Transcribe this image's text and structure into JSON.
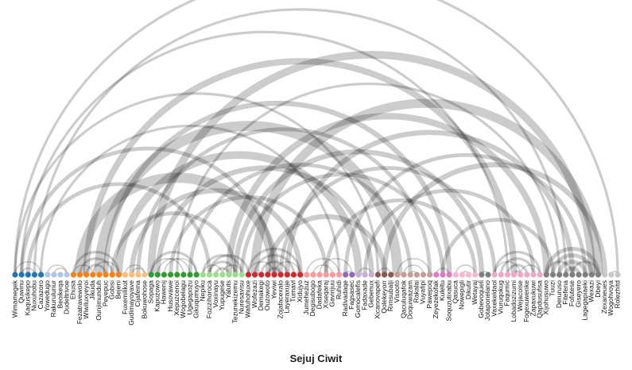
{
  "chart_data": {
    "type": "arc",
    "title": "Sejuj Ciwit",
    "nodes": [
      {
        "name": "Wimamegek",
        "group": 0
      },
      {
        "name": "Quwinu",
        "group": 0
      },
      {
        "name": "Kaqusikepo",
        "group": 0
      },
      {
        "name": "Nuxuhobu",
        "group": 0
      },
      {
        "name": "Cazazoro",
        "group": 0
      },
      {
        "name": "Yowedugo",
        "group": 1
      },
      {
        "name": "Rakurulunur",
        "group": 1
      },
      {
        "name": "Beoikeqa",
        "group": 1
      },
      {
        "name": "Dudeltrivoe",
        "group": 1
      },
      {
        "name": "Ehusa",
        "group": 2
      },
      {
        "name": "Fezatravewolo",
        "group": 2
      },
      {
        "name": "Wiwiluxyeyoi",
        "group": 2
      },
      {
        "name": "Jikuda",
        "group": 2
      },
      {
        "name": "Ounjimunduh",
        "group": 2
      },
      {
        "name": "Peyepuc",
        "group": 2
      },
      {
        "name": "Gobisi",
        "group": 2
      },
      {
        "name": "Bejeni",
        "group": 2
      },
      {
        "name": "Fuxemilikot",
        "group": 3
      },
      {
        "name": "Gudimayoyave",
        "group": 3
      },
      {
        "name": "Cijafema",
        "group": 3
      },
      {
        "name": "Bokuwohose",
        "group": 3
      },
      {
        "name": "Sopaga",
        "group": 4
      },
      {
        "name": "Kapuzowo",
        "group": 4
      },
      {
        "name": "Hawenij",
        "group": 4
      },
      {
        "name": "Husovawe",
        "group": 4
      },
      {
        "name": "Xepuzcenoi",
        "group": 4
      },
      {
        "name": "Wogobelagu",
        "group": 4
      },
      {
        "name": "Ugegapozu",
        "group": 4
      },
      {
        "name": "Gikuqumuyo",
        "group": 4
      },
      {
        "name": "Nepiku",
        "group": 5
      },
      {
        "name": "Fozizihoroca",
        "group": 5
      },
      {
        "name": "Voxinayu",
        "group": 5
      },
      {
        "name": "Yupugese",
        "group": 5
      },
      {
        "name": "Yaluts",
        "group": 5
      },
      {
        "name": "Tezunekizemu",
        "group": 5
      },
      {
        "name": "Nuresavisu",
        "group": 5
      },
      {
        "name": "Wafuhohuxe",
        "group": 6
      },
      {
        "name": "Wofezazi",
        "group": 6
      },
      {
        "name": "Demakegi",
        "group": 6
      },
      {
        "name": "Ouzowoto",
        "group": 6
      },
      {
        "name": "Yeviwi",
        "group": 6
      },
      {
        "name": "Zojafacexalo",
        "group": 6
      },
      {
        "name": "Layeraxuje",
        "group": 6
      },
      {
        "name": "Tumavl",
        "group": 6
      },
      {
        "name": "Xidujyo",
        "group": 6
      },
      {
        "name": "Jumehezuz",
        "group": 7
      },
      {
        "name": "Degisubogo",
        "group": 7
      },
      {
        "name": "Dadafeka",
        "group": 7
      },
      {
        "name": "Xiseqaraj",
        "group": 7
      },
      {
        "name": "Gavirijuu",
        "group": 7
      },
      {
        "name": "Ruhidi",
        "group": 7
      },
      {
        "name": "Radivadaqe",
        "group": 8
      },
      {
        "name": "Fagsasec",
        "group": 8
      },
      {
        "name": "Gomocalefis",
        "group": 9
      },
      {
        "name": "Fadaxade",
        "group": 9
      },
      {
        "name": "Gebenux",
        "group": 9
      },
      {
        "name": "Xicanovapefi",
        "group": 10
      },
      {
        "name": "Qolekeyorr",
        "group": 10
      },
      {
        "name": "Rimsubalji",
        "group": 10
      },
      {
        "name": "Visooto",
        "group": 11
      },
      {
        "name": "Qaculuqafok",
        "group": 11
      },
      {
        "name": "Doquiwazam",
        "group": 11
      },
      {
        "name": "Rakalai",
        "group": 11
      },
      {
        "name": "Vuyafipi",
        "group": 11
      },
      {
        "name": "Pawepoq",
        "group": 11
      },
      {
        "name": "Zeyezekofak",
        "group": 12
      },
      {
        "name": "Kuleltu",
        "group": 12
      },
      {
        "name": "Soquzutixabu",
        "group": 12
      },
      {
        "name": "Qasuca",
        "group": 13
      },
      {
        "name": "Nowepigli",
        "group": 13
      },
      {
        "name": "Dikutir",
        "group": 13
      },
      {
        "name": "Wetayaj",
        "group": 13
      },
      {
        "name": "Gobevoqueli",
        "group": 14
      },
      {
        "name": "Jotaponelano",
        "group": 14
      },
      {
        "name": "Vaxekeldaol",
        "group": 15
      },
      {
        "name": "Viuruqokug",
        "group": 15
      },
      {
        "name": "Faqumic",
        "group": 15
      },
      {
        "name": "Lobadozizumi",
        "group": 15
      },
      {
        "name": "Wejacoise",
        "group": 15
      },
      {
        "name": "Fogexuwenke",
        "group": 15
      },
      {
        "name": "Zapaxukuwi",
        "group": 15
      },
      {
        "name": "Qapdusufisa",
        "group": 15
      },
      {
        "name": "Xijohusuwo",
        "group": 16
      },
      {
        "name": "Tuuzi",
        "group": 16
      },
      {
        "name": "Deruruso",
        "group": 16
      },
      {
        "name": "Fitefena",
        "group": 16
      },
      {
        "name": "Fofutese",
        "group": 16
      },
      {
        "name": "Giseyero",
        "group": 16
      },
      {
        "name": "Lagegapiaeki",
        "group": 16
      },
      {
        "name": "Wexazi",
        "group": 16
      },
      {
        "name": "Dbeyi",
        "group": 16
      },
      {
        "name": "Zexaneues",
        "group": 17
      },
      {
        "name": "Wogohvoya",
        "group": 17
      },
      {
        "name": "Rolezhitd",
        "group": 17
      }
    ],
    "group_colors": [
      "#1f77b4",
      "#aec7e8",
      "#ff7f0e",
      "#ffbb78",
      "#2ca02c",
      "#98df8a",
      "#d62728",
      "#ff9896",
      "#9467bd",
      "#c5b0d5",
      "#8c564b",
      "#c49c94",
      "#e377c2",
      "#f7b6d2",
      "#7f7f7f",
      "#f4a6c8",
      "#7f7f7f",
      "#c7c7c7"
    ],
    "links": [
      {
        "source": 0,
        "target": 93,
        "value": 2
      },
      {
        "source": 0,
        "target": 56,
        "value": 2
      },
      {
        "source": 1,
        "target": 40,
        "value": 3
      },
      {
        "source": 1,
        "target": 76,
        "value": 2
      },
      {
        "source": 2,
        "target": 30,
        "value": 3
      },
      {
        "source": 3,
        "target": 85,
        "value": 2
      },
      {
        "source": 4,
        "target": 50,
        "value": 2
      },
      {
        "source": 0,
        "target": 4,
        "value": 1
      },
      {
        "source": 1,
        "target": 3,
        "value": 1
      },
      {
        "source": 5,
        "target": 8,
        "value": 1
      },
      {
        "source": 6,
        "target": 8,
        "value": 1
      },
      {
        "source": 9,
        "target": 16,
        "value": 2
      },
      {
        "source": 10,
        "target": 15,
        "value": 2
      },
      {
        "source": 11,
        "target": 14,
        "value": 2
      },
      {
        "source": 9,
        "target": 12,
        "value": 1
      },
      {
        "source": 12,
        "target": 16,
        "value": 1
      },
      {
        "source": 10,
        "target": 40,
        "value": 8
      },
      {
        "source": 11,
        "target": 77,
        "value": 5
      },
      {
        "source": 13,
        "target": 59,
        "value": 8
      },
      {
        "source": 14,
        "target": 67,
        "value": 4
      },
      {
        "source": 15,
        "target": 34,
        "value": 3
      },
      {
        "source": 16,
        "target": 53,
        "value": 6
      },
      {
        "source": 17,
        "target": 20,
        "value": 1
      },
      {
        "source": 18,
        "target": 20,
        "value": 1
      },
      {
        "source": 19,
        "target": 64,
        "value": 3
      },
      {
        "source": 18,
        "target": 44,
        "value": 4
      },
      {
        "source": 21,
        "target": 28,
        "value": 2
      },
      {
        "source": 21,
        "target": 26,
        "value": 1
      },
      {
        "source": 22,
        "target": 27,
        "value": 1
      },
      {
        "source": 23,
        "target": 28,
        "value": 1
      },
      {
        "source": 21,
        "target": 89,
        "value": 6
      },
      {
        "source": 22,
        "target": 55,
        "value": 4
      },
      {
        "source": 24,
        "target": 48,
        "value": 3
      },
      {
        "source": 25,
        "target": 84,
        "value": 2
      },
      {
        "source": 27,
        "target": 61,
        "value": 3
      },
      {
        "source": 29,
        "target": 35,
        "value": 2
      },
      {
        "source": 30,
        "target": 34,
        "value": 2
      },
      {
        "source": 31,
        "target": 33,
        "value": 2
      },
      {
        "source": 29,
        "target": 32,
        "value": 1
      },
      {
        "source": 32,
        "target": 35,
        "value": 1
      },
      {
        "source": 30,
        "target": 36,
        "value": 2
      },
      {
        "source": 33,
        "target": 82,
        "value": 5
      },
      {
        "source": 34,
        "target": 72,
        "value": 4
      },
      {
        "source": 35,
        "target": 66,
        "value": 3
      },
      {
        "source": 36,
        "target": 44,
        "value": 2
      },
      {
        "source": 37,
        "target": 43,
        "value": 2
      },
      {
        "source": 38,
        "target": 42,
        "value": 2
      },
      {
        "source": 39,
        "target": 41,
        "value": 2
      },
      {
        "source": 36,
        "target": 40,
        "value": 1
      },
      {
        "source": 40,
        "target": 44,
        "value": 1
      },
      {
        "source": 37,
        "target": 90,
        "value": 7
      },
      {
        "source": 39,
        "target": 57,
        "value": 4
      },
      {
        "source": 41,
        "target": 74,
        "value": 3
      },
      {
        "source": 42,
        "target": 86,
        "value": 4
      },
      {
        "source": 45,
        "target": 50,
        "value": 1
      },
      {
        "source": 46,
        "target": 49,
        "value": 1
      },
      {
        "source": 47,
        "target": 52,
        "value": 1
      },
      {
        "source": 48,
        "target": 71,
        "value": 3
      },
      {
        "source": 51,
        "target": 52,
        "value": 1
      },
      {
        "source": 51,
        "target": 88,
        "value": 3
      },
      {
        "source": 53,
        "target": 55,
        "value": 1
      },
      {
        "source": 54,
        "target": 80,
        "value": 3
      },
      {
        "source": 56,
        "target": 58,
        "value": 1
      },
      {
        "source": 57,
        "target": 91,
        "value": 4
      },
      {
        "source": 59,
        "target": 64,
        "value": 1
      },
      {
        "source": 60,
        "target": 63,
        "value": 1
      },
      {
        "source": 61,
        "target": 62,
        "value": 1
      },
      {
        "source": 65,
        "target": 67,
        "value": 1
      },
      {
        "source": 66,
        "target": 83,
        "value": 3
      },
      {
        "source": 68,
        "target": 71,
        "value": 1
      },
      {
        "source": 69,
        "target": 70,
        "value": 1
      },
      {
        "source": 72,
        "target": 73,
        "value": 1
      },
      {
        "source": 74,
        "target": 81,
        "value": 2
      },
      {
        "source": 75,
        "target": 80,
        "value": 2
      },
      {
        "source": 76,
        "target": 79,
        "value": 2
      },
      {
        "source": 77,
        "target": 78,
        "value": 2
      },
      {
        "source": 74,
        "target": 78,
        "value": 1
      },
      {
        "source": 78,
        "target": 81,
        "value": 1
      },
      {
        "source": 82,
        "target": 90,
        "value": 3
      },
      {
        "source": 83,
        "target": 89,
        "value": 3
      },
      {
        "source": 84,
        "target": 88,
        "value": 3
      },
      {
        "source": 85,
        "target": 87,
        "value": 3
      },
      {
        "source": 82,
        "target": 86,
        "value": 2
      },
      {
        "source": 86,
        "target": 90,
        "value": 2
      },
      {
        "source": 92,
        "target": 94,
        "value": 1
      },
      {
        "source": 92,
        "target": 93,
        "value": 1
      }
    ]
  }
}
